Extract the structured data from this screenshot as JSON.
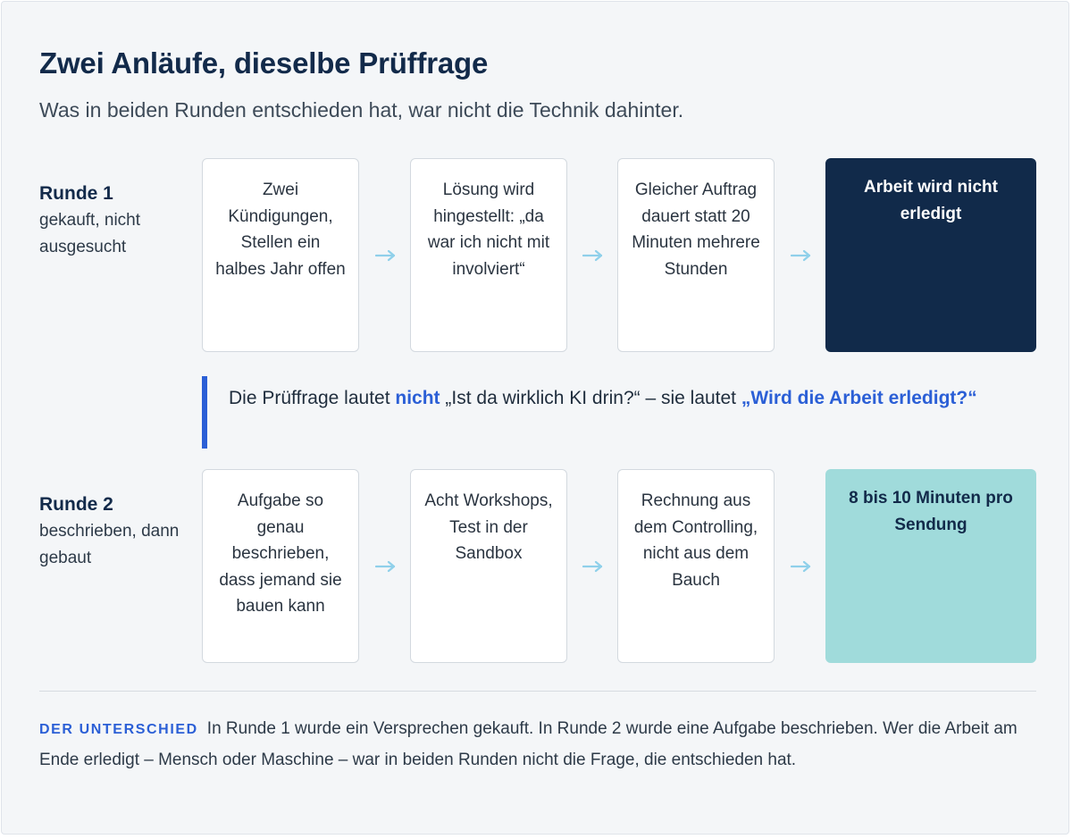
{
  "header": {
    "title": "Zwei Anläufe, dieselbe Prüffrage",
    "subtitle": "Was in beiden Runden entschieden hat, war nicht die Technik dahinter."
  },
  "round1": {
    "name": "Runde 1",
    "caption": "gekauft, nicht ausgesucht",
    "steps": [
      "Zwei Kündigungen, Stellen ein halbes Jahr offen",
      "Lösung wird hingestellt: „da war ich nicht mit involviert“",
      "Gleicher Auftrag dauert statt 20 Minuten mehrere Stunden"
    ],
    "result": "Arbeit wird nicht erledigt"
  },
  "callout": {
    "part1": "Die Prüffrage lautet ",
    "highlight1": "nicht",
    "part2": " „Ist da wirklich KI drin?“ – sie lautet ",
    "highlight2": "„Wird die Arbeit erledigt?“"
  },
  "round2": {
    "name": "Runde 2",
    "caption": "beschrieben, dann gebaut",
    "steps": [
      "Aufgabe so genau beschrieben, dass jemand sie bauen kann",
      "Acht Workshops, Test in der Sandbox",
      "Rechnung aus dem Controlling, nicht aus dem Bauch"
    ],
    "result": "8 bis 10 Minuten pro Sendung"
  },
  "footer": {
    "tag": "DER UNTERSCHIED",
    "text": "In Runde 1 wurde ein Versprechen gekauft. In Runde 2 wurde eine Aufgabe beschrieben. Wer die Arbeit am Ende erledigt – Mensch oder Maschine – war in beiden Runden nicht die Frage, die entschieden hat."
  },
  "colors": {
    "navy": "#112a4a",
    "teal": "#a0dbdb",
    "accent_blue": "#2b5fd6",
    "arrow": "#8fd0ea"
  },
  "icons": {
    "step_connector": "arrow-right-icon"
  }
}
